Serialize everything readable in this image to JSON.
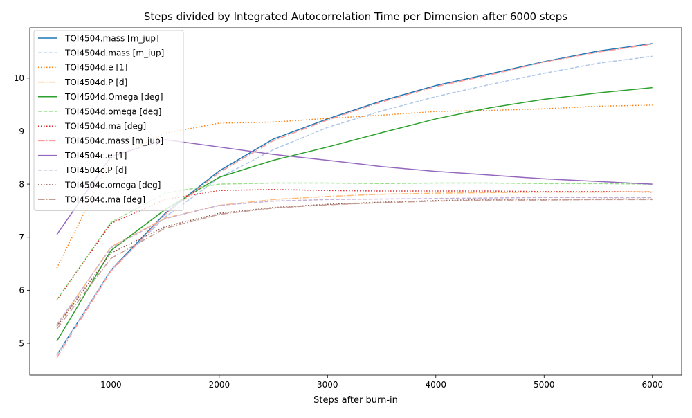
{
  "chart_data": {
    "type": "line",
    "title": "Steps divided by Integrated Autocorrelation Time per Dimension after 6000 steps",
    "xlabel": "Steps after burn-in",
    "ylabel": "",
    "xlim": [
      250,
      6270
    ],
    "ylim": [
      4.4,
      10.95
    ],
    "xticks": [
      "1000",
      "2000",
      "3000",
      "4000",
      "5000",
      "6000"
    ],
    "yticks": [
      "5",
      "6",
      "7",
      "8",
      "9",
      "10"
    ],
    "xtick_values": [
      1000,
      2000,
      3000,
      4000,
      5000,
      6000
    ],
    "ytick_values": [
      5,
      6,
      7,
      8,
      9,
      10
    ],
    "grid": false,
    "legend": "upper-left",
    "x": [
      500,
      1000,
      1500,
      2000,
      2500,
      3000,
      3500,
      4000,
      4500,
      5000,
      5500,
      6000
    ],
    "series": [
      {
        "name": "TOI4504.mass [m_jup]",
        "color": "#1f77b4",
        "dash": "solid",
        "values": [
          4.78,
          6.38,
          7.45,
          8.25,
          8.85,
          9.23,
          9.57,
          9.86,
          10.08,
          10.31,
          10.51,
          10.65
        ]
      },
      {
        "name": "TOI4504d.mass [m_jup]",
        "color": "#aec7e8",
        "dash": "dashed",
        "values": [
          4.78,
          6.38,
          7.38,
          8.12,
          8.65,
          9.07,
          9.38,
          9.65,
          9.88,
          10.09,
          10.28,
          10.41
        ]
      },
      {
        "name": "TOI4504d.e [1]",
        "color": "#ff7f0e",
        "dash": "dotted",
        "values": [
          6.42,
          8.48,
          8.96,
          9.15,
          9.17,
          9.24,
          9.3,
          9.37,
          9.39,
          9.42,
          9.47,
          9.49
        ]
      },
      {
        "name": "TOI4504d.P [d]",
        "color": "#ffbb78",
        "dash": "dashdot",
        "values": [
          5.32,
          6.82,
          7.36,
          7.6,
          7.71,
          7.77,
          7.81,
          7.83,
          7.84,
          7.85,
          7.85,
          7.86
        ]
      },
      {
        "name": "TOI4504d.Omega [deg]",
        "color": "#2ca02c",
        "dash": "solid",
        "values": [
          5.04,
          6.75,
          7.52,
          8.13,
          8.45,
          8.7,
          8.97,
          9.23,
          9.44,
          9.6,
          9.72,
          9.82
        ]
      },
      {
        "name": "TOI4504d.omega [deg]",
        "color": "#98df8a",
        "dash": "dashed",
        "values": [
          5.82,
          7.28,
          7.83,
          8.0,
          8.02,
          8.02,
          8.01,
          8.02,
          8.02,
          8.01,
          8.01,
          8.0
        ]
      },
      {
        "name": "TOI4504d.ma [deg]",
        "color": "#d62728",
        "dash": "dotted",
        "values": [
          5.81,
          7.26,
          7.71,
          7.88,
          7.9,
          7.88,
          7.87,
          7.87,
          7.87,
          7.86,
          7.86,
          7.85
        ]
      },
      {
        "name": "TOI4504c.mass [m_jup]",
        "color": "#ff9896",
        "dash": "dashdot",
        "values": [
          4.73,
          6.36,
          7.43,
          8.22,
          8.82,
          9.21,
          9.55,
          9.84,
          10.06,
          10.3,
          10.49,
          10.64
        ]
      },
      {
        "name": "TOI4504c.e [1]",
        "color": "#9467bd",
        "dash": "solid",
        "values": [
          7.05,
          8.52,
          8.84,
          8.7,
          8.56,
          8.45,
          8.33,
          8.24,
          8.17,
          8.1,
          8.05,
          8.0
        ]
      },
      {
        "name": "TOI4504c.P [d]",
        "color": "#c5b0d5",
        "dash": "dashed",
        "values": [
          5.35,
          6.8,
          7.35,
          7.6,
          7.68,
          7.71,
          7.72,
          7.73,
          7.74,
          7.75,
          7.75,
          7.75
        ]
      },
      {
        "name": "TOI4504c.omega [deg]",
        "color": "#8c564b",
        "dash": "dotted",
        "values": [
          5.32,
          6.7,
          7.2,
          7.45,
          7.56,
          7.62,
          7.66,
          7.69,
          7.71,
          7.71,
          7.72,
          7.72
        ]
      },
      {
        "name": "TOI4504c.ma [deg]",
        "color": "#c49c94",
        "dash": "dashdot",
        "values": [
          5.27,
          6.6,
          7.17,
          7.43,
          7.55,
          7.61,
          7.65,
          7.68,
          7.7,
          7.7,
          7.71,
          7.71
        ]
      }
    ]
  }
}
